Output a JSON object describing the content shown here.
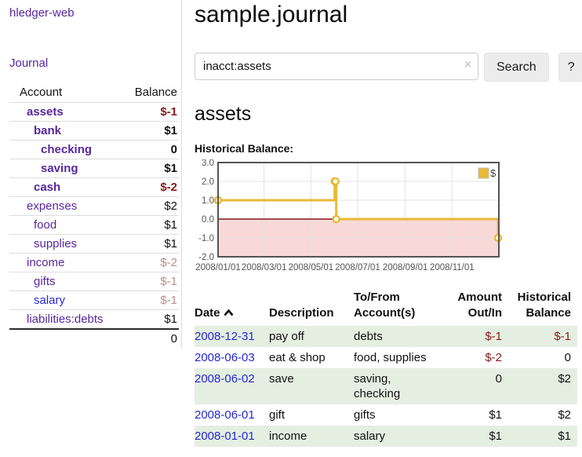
{
  "app": {
    "title": "hledger-web",
    "journal_link": "Journal"
  },
  "colors": {
    "accent_purple": "#56279d",
    "link_blue": "#2727d4",
    "negative": "#8b1a1a",
    "negative_soft": "#c08a8a",
    "row_green": "#e4efe1",
    "button_bg": "#ececec",
    "chart_line": "#e8ba37",
    "chart_negative_region": "#f9d8d8",
    "chart_zero_line": "#801515"
  },
  "sidebar": {
    "headers": [
      "Account",
      "Balance"
    ],
    "rows": [
      {
        "name": "assets",
        "balance": "$-1",
        "level": 1,
        "bold": true,
        "balance_style": "neg"
      },
      {
        "name": "bank",
        "balance": "$1",
        "level": 2,
        "bold": true,
        "balance_style": "pos"
      },
      {
        "name": "checking",
        "balance": "0",
        "level": 3,
        "bold": true,
        "balance_style": "pos"
      },
      {
        "name": "saving",
        "balance": "$1",
        "level": 3,
        "bold": true,
        "balance_style": "pos"
      },
      {
        "name": "cash",
        "balance": "$-2",
        "level": 2,
        "bold": true,
        "balance_style": "neg"
      },
      {
        "name": "expenses",
        "balance": "$2",
        "level": 1,
        "bold": false,
        "balance_style": "pos"
      },
      {
        "name": "food",
        "balance": "$1",
        "level": 2,
        "bold": false,
        "balance_style": "pos"
      },
      {
        "name": "supplies",
        "balance": "$1",
        "level": 2,
        "bold": false,
        "balance_style": "pos"
      },
      {
        "name": "income",
        "balance": "$-2",
        "level": 1,
        "bold": false,
        "balance_style": "neg-soft"
      },
      {
        "name": "gifts",
        "balance": "$-1",
        "level": 2,
        "bold": false,
        "balance_style": "neg-soft"
      },
      {
        "name": "salary",
        "balance": "$-1",
        "level": 2,
        "bold": false,
        "balance_style": "neg-soft",
        "link_style": "blue"
      },
      {
        "name": "liabilities:debts",
        "balance": "$1",
        "level": 1,
        "bold": false,
        "balance_style": "pos"
      }
    ],
    "total": "0"
  },
  "main": {
    "title": "sample.journal",
    "search": {
      "value": "inacct:assets",
      "clear_icon": "×",
      "button_label": "Search",
      "help_label": "?"
    },
    "account_heading": "assets",
    "chart_label": "Historical Balance:"
  },
  "chart_data": {
    "type": "line",
    "title": "Historical Balance:",
    "step": true,
    "series": [
      {
        "name": "$",
        "color": "#e8ba37",
        "points": [
          [
            "2008-01-01",
            1
          ],
          [
            "2008-06-01",
            2
          ],
          [
            "2008-06-02",
            2
          ],
          [
            "2008-06-03",
            0
          ],
          [
            "2008-12-31",
            -1
          ]
        ]
      }
    ],
    "xlim": [
      "2008-01-01",
      "2009-01-01"
    ],
    "ylim": [
      -2,
      3
    ],
    "yticks": [
      "3.0",
      "2.0",
      "1.0",
      "0.0",
      "-1.0",
      "-2.0"
    ],
    "ytick_values": [
      3,
      2,
      1,
      0,
      -1,
      -2
    ],
    "xticks": [
      "2008/01/01",
      "2008/03/01",
      "2008/05/01",
      "2008/07/01",
      "2008/09/01",
      "2008/11/01"
    ],
    "legend": {
      "label": "$",
      "position": "top-right"
    },
    "grid": true,
    "negative_region_shaded": true
  },
  "register": {
    "headers": {
      "date": "Date",
      "description": "Description",
      "accounts": "To/From Account(s)",
      "amount": "Amount Out/In",
      "balance": "Historical Balance"
    },
    "sort": "ascending",
    "rows": [
      {
        "date": "2008-12-31",
        "description": "pay off",
        "accounts": "debts",
        "amount": "$-1",
        "balance": "$-1"
      },
      {
        "date": "2008-06-03",
        "description": "eat & shop",
        "accounts": "food, supplies",
        "amount": "$-2",
        "balance": "0"
      },
      {
        "date": "2008-06-02",
        "description": "save",
        "accounts": "saving, checking",
        "amount": "0",
        "balance": "$2"
      },
      {
        "date": "2008-06-01",
        "description": "gift",
        "accounts": "gifts",
        "amount": "$1",
        "balance": "$2"
      },
      {
        "date": "2008-01-01",
        "description": "income",
        "accounts": "salary",
        "amount": "$1",
        "balance": "$1"
      }
    ]
  }
}
